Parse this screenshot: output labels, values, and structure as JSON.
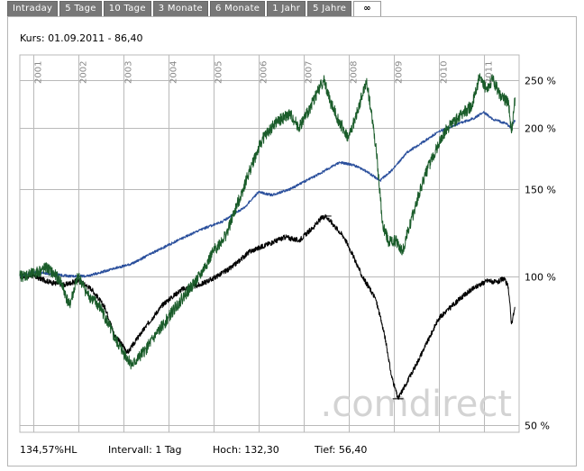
{
  "tabs": [
    {
      "label": "Intraday"
    },
    {
      "label": "5 Tage"
    },
    {
      "label": "10 Tage"
    },
    {
      "label": "3 Monate"
    },
    {
      "label": "6 Monate"
    },
    {
      "label": "1 Jahr"
    },
    {
      "label": "5 Jahre"
    },
    {
      "label": "∞"
    }
  ],
  "kurs_text": "Kurs: 01.09.2011 - 86,40",
  "watermark": ".comdirect",
  "colors": {
    "stock": "#000000",
    "benchmark": "#2a4f9c",
    "comparison": "#1a5c2a",
    "grid": "#b9b9b9",
    "tab_bg": "#777777"
  },
  "footer": {
    "performance": "134,57%HL",
    "interval": "Intervall: 1 Tag",
    "high": "Hoch:  132,30",
    "low": "Tief:  56,40"
  },
  "chart_data": {
    "type": "line",
    "y_scale": "log",
    "ylim": [
      50,
      260
    ],
    "y_ticks": [
      50,
      100,
      150,
      200,
      250
    ],
    "y_tick_labels": [
      "50 %",
      "100 %",
      "150 %",
      "200 %",
      "250 %"
    ],
    "x_year_labels": [
      "2001",
      "2002",
      "2003",
      "2004",
      "2005",
      "2006",
      "2007",
      "2008",
      "2009",
      "2010",
      "2011"
    ],
    "xlim": [
      2000.7,
      2011.75
    ],
    "series": [
      {
        "color": "#000000",
        "x": [
          2000.7,
          2001.0,
          2001.4,
          2001.7,
          2002.0,
          2002.3,
          2002.6,
          2002.8,
          2003.1,
          2003.5,
          2003.9,
          2004.3,
          2004.7,
          2005.0,
          2005.4,
          2005.8,
          2006.2,
          2006.6,
          2006.9,
          2007.2,
          2007.4,
          2007.5,
          2007.7,
          2007.9,
          2008.1,
          2008.3,
          2008.6,
          2008.8,
          2008.95,
          2009.1,
          2009.3,
          2009.5,
          2009.8,
          2010.0,
          2010.3,
          2010.6,
          2010.9,
          2011.1,
          2011.3,
          2011.45,
          2011.55,
          2011.62,
          2011.7
        ],
        "y": [
          100,
          100,
          97,
          96,
          98,
          94,
          86,
          76,
          70,
          79,
          88,
          94,
          96,
          99,
          104,
          112,
          116,
          120,
          118,
          125,
          131,
          132.3,
          126,
          120,
          110,
          100,
          90,
          76,
          63,
          56.4,
          61,
          66,
          75,
          82,
          87,
          92,
          96,
          98,
          97,
          99,
          95,
          80,
          86.4
        ]
      },
      {
        "color": "#2a4f9c",
        "x": [
          2000.7,
          2001.0,
          2001.4,
          2001.8,
          2002.2,
          2002.7,
          2003.2,
          2003.7,
          2004.2,
          2004.7,
          2005.2,
          2005.7,
          2006.0,
          2006.3,
          2006.7,
          2007.0,
          2007.4,
          2007.8,
          2008.1,
          2008.4,
          2008.7,
          2009.0,
          2009.3,
          2009.7,
          2010.0,
          2010.4,
          2010.8,
          2011.0,
          2011.2,
          2011.5,
          2011.6,
          2011.7
        ],
        "y": [
          100,
          102,
          101,
          100,
          100,
          103,
          106,
          112,
          118,
          124,
          129,
          138,
          148,
          146,
          150,
          155,
          162,
          170,
          168,
          163,
          156,
          165,
          178,
          188,
          196,
          203,
          209,
          215,
          208,
          204,
          200,
          207
        ]
      },
      {
        "color": "#1a5c2a",
        "x": [
          2000.7,
          2001.0,
          2001.3,
          2001.6,
          2001.8,
          2002.0,
          2002.2,
          2002.5,
          2002.8,
          2003.0,
          2003.2,
          2003.5,
          2003.9,
          2004.3,
          2004.7,
          2005.0,
          2005.3,
          2005.6,
          2005.9,
          2006.1,
          2006.4,
          2006.7,
          2006.9,
          2007.1,
          2007.3,
          2007.45,
          2007.6,
          2007.8,
          2008.0,
          2008.2,
          2008.4,
          2008.6,
          2008.75,
          2008.9,
          2009.05,
          2009.2,
          2009.45,
          2009.7,
          2010.0,
          2010.2,
          2010.5,
          2010.75,
          2010.9,
          2011.05,
          2011.2,
          2011.4,
          2011.55,
          2011.62,
          2011.7
        ],
        "y": [
          100,
          101,
          104,
          98,
          87,
          100,
          92,
          86,
          75,
          70,
          66,
          71,
          80,
          90,
          100,
          112,
          122,
          145,
          172,
          190,
          205,
          213,
          200,
          215,
          235,
          250,
          225,
          205,
          190,
          215,
          248,
          185,
          128,
          117,
          118,
          112,
          135,
          160,
          185,
          200,
          212,
          222,
          252,
          240,
          250,
          230,
          225,
          195,
          230
        ]
      }
    ]
  }
}
